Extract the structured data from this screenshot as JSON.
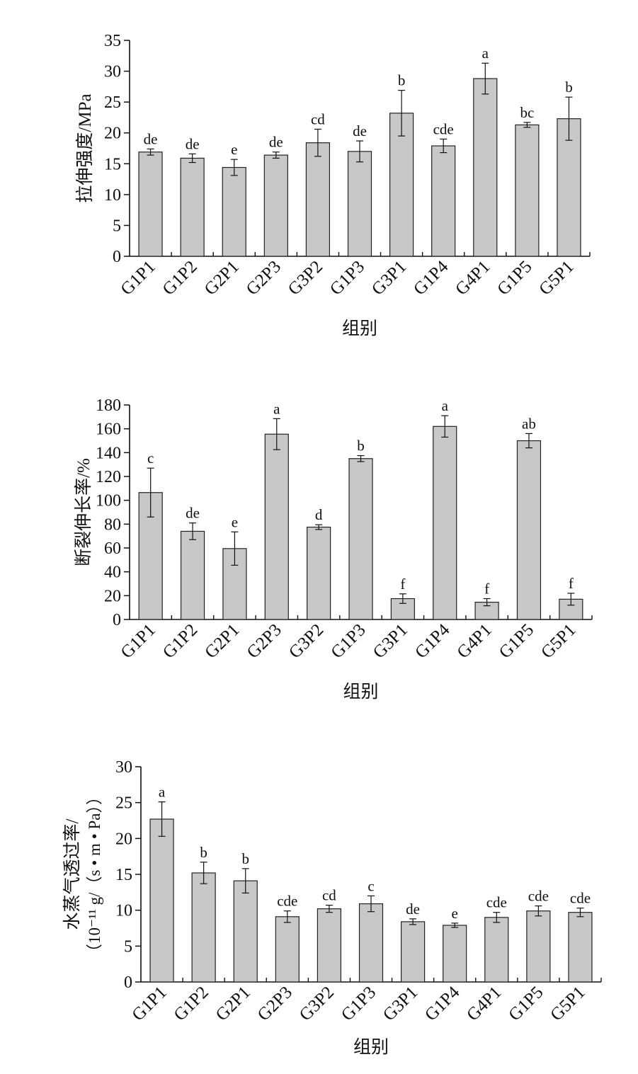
{
  "colors": {
    "bar_fill": "#c8c8c8",
    "bar_stroke": "#222222",
    "axis": "#111111"
  },
  "chart_data": [
    {
      "type": "bar",
      "categories": [
        "G1P1",
        "G1P2",
        "G2P1",
        "G2P3",
        "G3P2",
        "G1P3",
        "G3P1",
        "G1P4",
        "G4P1",
        "G1P5",
        "G5P1"
      ],
      "values": [
        16.9,
        15.9,
        14.4,
        16.4,
        18.4,
        17.0,
        23.2,
        17.9,
        28.8,
        21.3,
        22.3
      ],
      "errors": [
        0.5,
        0.7,
        1.3,
        0.5,
        2.2,
        1.7,
        3.7,
        1.1,
        2.5,
        0.4,
        3.5
      ],
      "letters": [
        "de",
        "de",
        "e",
        "de",
        "cd",
        "de",
        "b",
        "cde",
        "a",
        "bc",
        "b"
      ],
      "ylim": [
        0,
        35
      ],
      "yticks": [
        0,
        5,
        10,
        15,
        20,
        25,
        30,
        35
      ],
      "ylabel": "拉伸强度/MPa",
      "xlabel": "组别",
      "title": ""
    },
    {
      "type": "bar",
      "categories": [
        "G1P1",
        "G1P2",
        "G2P1",
        "G2P3",
        "G3P2",
        "G1P3",
        "G3P1",
        "G1P4",
        "G4P1",
        "G1P5",
        "G5P1"
      ],
      "values": [
        106.5,
        74.0,
        59.5,
        155.5,
        77.5,
        135.0,
        17.5,
        162.0,
        14.5,
        150.0,
        17.0
      ],
      "errors": [
        20.5,
        7.0,
        14.0,
        13.0,
        2.0,
        2.5,
        4.0,
        9.0,
        3.0,
        6.0,
        5.0
      ],
      "letters": [
        "c",
        "de",
        "e",
        "a",
        "d",
        "b",
        "f",
        "a",
        "f",
        "ab",
        "f"
      ],
      "ylim": [
        0,
        180
      ],
      "yticks": [
        0,
        20,
        40,
        60,
        80,
        100,
        120,
        140,
        160,
        180
      ],
      "ylabel": "断裂伸长率/%",
      "xlabel": "组别",
      "title": ""
    },
    {
      "type": "bar",
      "categories": [
        "G1P1",
        "G1P2",
        "G2P1",
        "G2P3",
        "G3P2",
        "G1P3",
        "G3P1",
        "G1P4",
        "G4P1",
        "G1P5",
        "G5P1"
      ],
      "values": [
        22.7,
        15.2,
        14.1,
        9.1,
        10.2,
        10.9,
        8.4,
        7.9,
        9.0,
        9.9,
        9.7
      ],
      "errors": [
        2.4,
        1.5,
        1.7,
        0.8,
        0.5,
        1.1,
        0.4,
        0.3,
        0.7,
        0.7,
        0.6
      ],
      "letters": [
        "a",
        "b",
        "b",
        "cde",
        "cd",
        "c",
        "de",
        "e",
        "cde",
        "cde",
        "cde"
      ],
      "ylim": [
        0,
        30
      ],
      "yticks": [
        0,
        5,
        10,
        15,
        20,
        25,
        30
      ],
      "ylabel": "水蒸气透过率/",
      "ylabel2": "（10⁻¹¹ g/（s • m • Pa））",
      "xlabel": "组别",
      "title": ""
    }
  ]
}
